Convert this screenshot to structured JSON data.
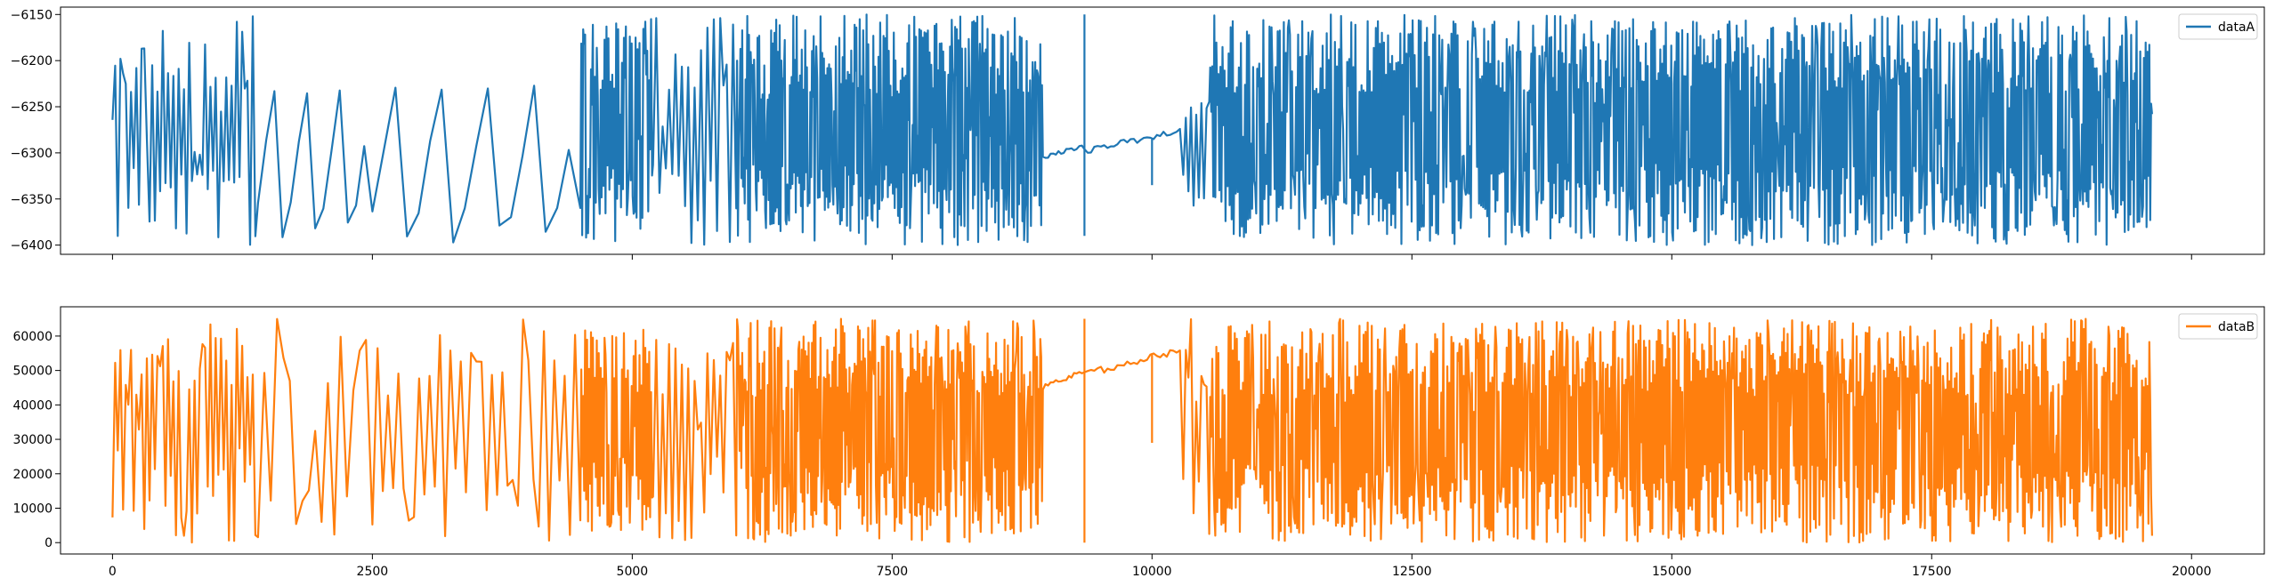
{
  "chart_data": [
    {
      "type": "line",
      "legend": {
        "label": "dataA",
        "placement": "upper right"
      },
      "color": "#1f77b4",
      "xlim": [
        -500,
        20700
      ],
      "ylim": [
        -6410,
        -6142
      ],
      "yticks": [
        -6400,
        -6350,
        -6300,
        -6250,
        -6200,
        -6150
      ],
      "xticks": [
        0,
        2500,
        5000,
        7500,
        10000,
        12500,
        15000,
        17500,
        20000
      ],
      "show_xtick_labels": false,
      "grid": false,
      "segments": [
        {
          "x_start": 0,
          "x_end": 1400,
          "range": [
            -6400,
            -6150
          ],
          "density": 55,
          "mode": "osc"
        },
        {
          "x_start": 1400,
          "x_end": 2500,
          "range": [
            -6400,
            -6150
          ],
          "density": 14,
          "mode": "ramp"
        },
        {
          "x_start": 2500,
          "x_end": 4500,
          "range": [
            -6400,
            -6150
          ],
          "density": 18,
          "mode": "ramp"
        },
        {
          "x_start": 4500,
          "x_end": 5200,
          "range": [
            -6400,
            -6150
          ],
          "density": 75,
          "mode": "osc"
        },
        {
          "x_start": 5200,
          "x_end": 6000,
          "range": [
            -6400,
            -6150
          ],
          "density": 26,
          "mode": "osc"
        },
        {
          "x_start": 6000,
          "x_end": 8950,
          "range": [
            -6400,
            -6150
          ],
          "density": 360,
          "mode": "osc"
        },
        {
          "x_start": 8950,
          "x_end": 9350,
          "range": [
            -6305,
            -6292
          ],
          "density": 16,
          "mode": "flat"
        },
        {
          "x_start": 9350,
          "x_end": 10300,
          "range": [
            -6298,
            -6275
          ],
          "density": 30,
          "mode": "flat"
        },
        {
          "x_start": 10300,
          "x_end": 10550,
          "range": [
            -6360,
            -6230
          ],
          "density": 10,
          "mode": "osc"
        },
        {
          "x_start": 10550,
          "x_end": 13500,
          "range": [
            -6400,
            -6150
          ],
          "density": 300,
          "mode": "osc"
        },
        {
          "x_start": 13500,
          "x_end": 19620,
          "range": [
            -6400,
            -6150
          ],
          "density": 700,
          "mode": "osc"
        }
      ],
      "spikes": [
        {
          "x": 9350,
          "low": -6390,
          "high": -6150
        },
        {
          "x": 10000,
          "low": -6335,
          "high": -6285
        }
      ],
      "end_point": {
        "x": 19620,
        "y": -6258
      }
    },
    {
      "type": "line",
      "legend": {
        "label": "dataB",
        "placement": "upper right"
      },
      "color": "#ff7f0e",
      "xlim": [
        -500,
        20700
      ],
      "ylim": [
        -3300,
        68500
      ],
      "yticks": [
        0,
        10000,
        20000,
        30000,
        40000,
        50000,
        60000
      ],
      "xticks": [
        0,
        2500,
        5000,
        7500,
        10000,
        12500,
        15000,
        17500,
        20000
      ],
      "show_xtick_labels": true,
      "grid": false,
      "segments": [
        {
          "x_start": 0,
          "x_end": 1400,
          "range": [
            0,
            65000
          ],
          "density": 55,
          "mode": "osc"
        },
        {
          "x_start": 1400,
          "x_end": 2500,
          "range": [
            0,
            65000
          ],
          "density": 18,
          "mode": "osc"
        },
        {
          "x_start": 2500,
          "x_end": 4500,
          "range": [
            0,
            65000
          ],
          "density": 40,
          "mode": "osc"
        },
        {
          "x_start": 4500,
          "x_end": 5200,
          "range": [
            3000,
            62000
          ],
          "density": 75,
          "mode": "osc"
        },
        {
          "x_start": 5200,
          "x_end": 6000,
          "range": [
            0,
            63000
          ],
          "density": 26,
          "mode": "osc"
        },
        {
          "x_start": 6000,
          "x_end": 8950,
          "range": [
            0,
            65000
          ],
          "density": 360,
          "mode": "osc"
        },
        {
          "x_start": 8950,
          "x_end": 9350,
          "range": [
            45000,
            50000
          ],
          "density": 16,
          "mode": "flat"
        },
        {
          "x_start": 9350,
          "x_end": 10300,
          "range": [
            49000,
            56000
          ],
          "density": 30,
          "mode": "flat"
        },
        {
          "x_start": 10300,
          "x_end": 10550,
          "range": [
            0,
            65000
          ],
          "density": 10,
          "mode": "osc"
        },
        {
          "x_start": 10550,
          "x_end": 13500,
          "range": [
            0,
            65000
          ],
          "density": 300,
          "mode": "osc"
        },
        {
          "x_start": 13500,
          "x_end": 19620,
          "range": [
            0,
            65000
          ],
          "density": 700,
          "mode": "osc"
        }
      ],
      "spikes": [
        {
          "x": 9350,
          "low": 0,
          "high": 65000
        },
        {
          "x": 10000,
          "low": 29000,
          "high": 55000
        }
      ],
      "end_point": {
        "x": 19620,
        "y": 2000
      }
    }
  ]
}
